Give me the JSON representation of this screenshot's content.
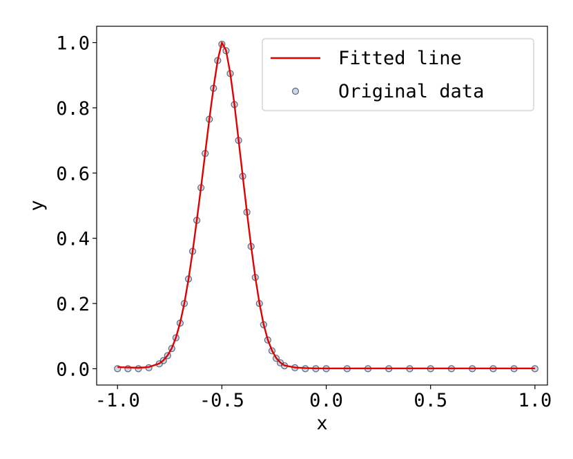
{
  "chart_data": {
    "type": "scatter",
    "xlabel": "x",
    "ylabel": "y",
    "xlim": [
      -1.1,
      1.06
    ],
    "ylim": [
      -0.05,
      1.05
    ],
    "x_ticks": [
      -1.0,
      -0.5,
      0.0,
      0.5,
      1.0
    ],
    "x_tick_labels": [
      "-1.0",
      "-0.5",
      "0.0",
      "0.5",
      "1.0"
    ],
    "y_ticks": [
      0.0,
      0.2,
      0.4,
      0.6,
      0.8,
      1.0
    ],
    "y_tick_labels": [
      "0.0",
      "0.2",
      "0.4",
      "0.6",
      "0.8",
      "1.0"
    ],
    "grid": false,
    "legend": {
      "placement": "top-right",
      "entries": [
        {
          "label": "Fitted line",
          "kind": "line",
          "color": "#e00000"
        },
        {
          "label": "Original data",
          "kind": "marker",
          "color": "#6f8fb5"
        }
      ]
    },
    "series": [
      {
        "name": "Original data",
        "kind": "scatter",
        "color": "#6f8fb5",
        "edge_color": "#1f2f4a",
        "x": [
          -1.0,
          -0.95,
          -0.9,
          -0.85,
          -0.8,
          -0.78,
          -0.76,
          -0.74,
          -0.72,
          -0.7,
          -0.68,
          -0.66,
          -0.64,
          -0.62,
          -0.6,
          -0.58,
          -0.56,
          -0.54,
          -0.52,
          -0.5,
          -0.48,
          -0.46,
          -0.44,
          -0.42,
          -0.4,
          -0.38,
          -0.36,
          -0.34,
          -0.32,
          -0.3,
          -0.28,
          -0.26,
          -0.24,
          -0.22,
          -0.2,
          -0.15,
          -0.1,
          -0.05,
          0.0,
          0.1,
          0.2,
          0.3,
          0.4,
          0.5,
          0.6,
          0.7,
          0.8,
          0.9,
          1.0
        ],
        "y": [
          0.0,
          0.0,
          0.0,
          0.003,
          0.015,
          0.025,
          0.04,
          0.062,
          0.095,
          0.14,
          0.2,
          0.275,
          0.36,
          0.455,
          0.555,
          0.66,
          0.765,
          0.86,
          0.945,
          0.995,
          0.975,
          0.905,
          0.81,
          0.7,
          0.59,
          0.48,
          0.375,
          0.28,
          0.2,
          0.135,
          0.088,
          0.055,
          0.032,
          0.018,
          0.009,
          0.003,
          0.0,
          0.0,
          0.0,
          0.0,
          0.0,
          0.0,
          0.0,
          0.0,
          0.0,
          0.0,
          0.0,
          0.0,
          0.0
        ]
      },
      {
        "name": "Fitted line",
        "kind": "line",
        "color": "#e00000",
        "x": [
          -1.0,
          -0.95,
          -0.9,
          -0.85,
          -0.8,
          -0.78,
          -0.76,
          -0.74,
          -0.72,
          -0.7,
          -0.68,
          -0.66,
          -0.64,
          -0.62,
          -0.6,
          -0.58,
          -0.56,
          -0.54,
          -0.52,
          -0.5,
          -0.48,
          -0.46,
          -0.44,
          -0.42,
          -0.4,
          -0.38,
          -0.36,
          -0.34,
          -0.32,
          -0.3,
          -0.28,
          -0.26,
          -0.24,
          -0.22,
          -0.2,
          -0.15,
          -0.1,
          -0.05,
          0.0,
          0.1,
          0.2,
          0.3,
          0.4,
          0.5,
          0.6,
          0.7,
          0.8,
          0.9,
          1.0
        ],
        "y": [
          0.005,
          0.004,
          0.003,
          0.005,
          0.016,
          0.026,
          0.041,
          0.063,
          0.096,
          0.141,
          0.2,
          0.274,
          0.36,
          0.456,
          0.556,
          0.661,
          0.766,
          0.862,
          0.946,
          1.0,
          0.976,
          0.906,
          0.811,
          0.701,
          0.59,
          0.48,
          0.376,
          0.281,
          0.201,
          0.136,
          0.089,
          0.056,
          0.033,
          0.019,
          0.01,
          0.004,
          0.002,
          0.001,
          0.001,
          0.001,
          0.001,
          0.001,
          0.001,
          0.001,
          0.001,
          0.001,
          0.001,
          0.001,
          0.001
        ]
      }
    ]
  }
}
